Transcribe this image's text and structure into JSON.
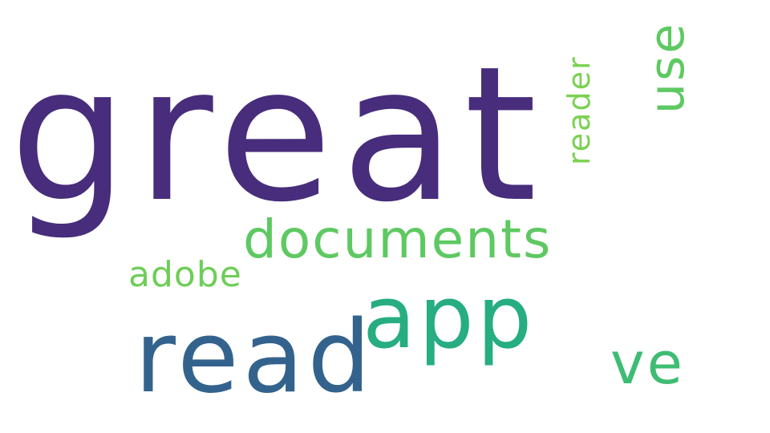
{
  "word_cloud": {
    "words": {
      "great": {
        "text": "great",
        "color": "#472d7b"
      },
      "documents": {
        "text": "documents",
        "color": "#5ec962"
      },
      "adobe": {
        "text": "adobe",
        "color": "#6ece58"
      },
      "app": {
        "text": "app",
        "color": "#26ad81"
      },
      "read": {
        "text": "read",
        "color": "#33638d"
      },
      "ve": {
        "text": "ve",
        "color": "#3fbc73"
      },
      "reader": {
        "text": "reader",
        "color": "#7ad151"
      },
      "use": {
        "text": "use",
        "color": "#5ec962"
      }
    }
  }
}
